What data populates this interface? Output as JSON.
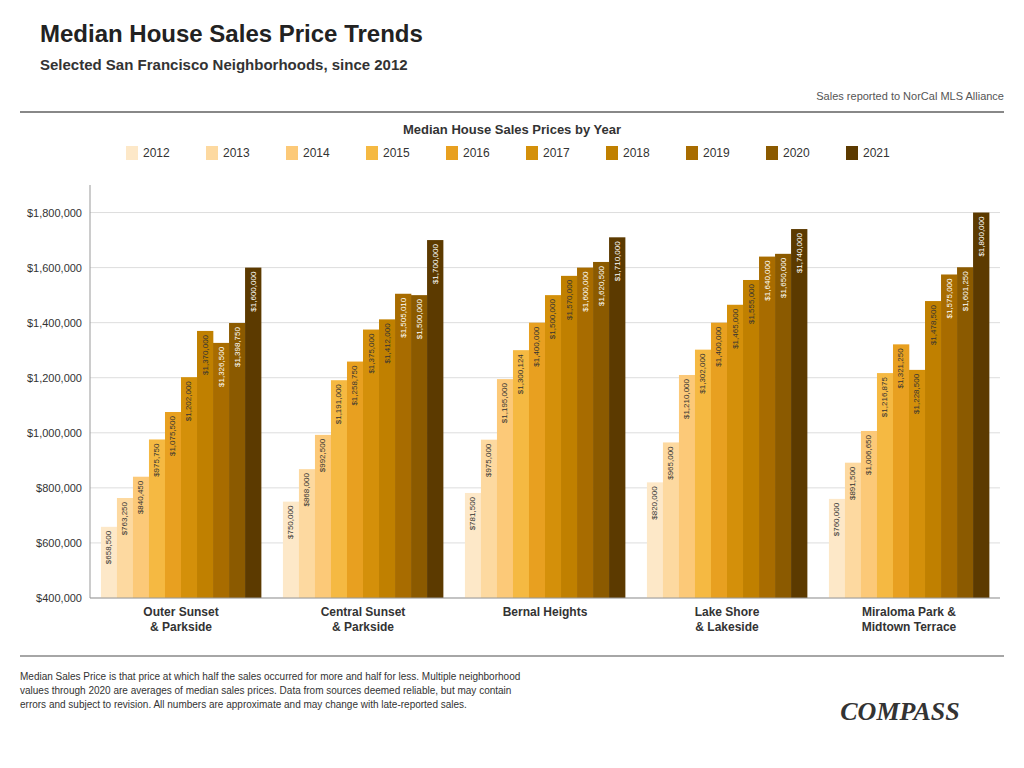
{
  "chart_data": {
    "type": "bar",
    "title": "Median House Sales Price Trends",
    "subtitle": "Selected San Francisco Neighborhoods, since 2012",
    "legend_title": "Median House Sales Prices by Year",
    "annotations": [
      "Sales reported to NorCal MLS Alliance",
      "Median Sales Price is that price at which half the sales occurred for more and half for less. Multiple neighborhood\nvalues through 2020 are averages of median sales prices. Data from sources deemed reliable, but may contain\nerrors and subject to revision.  All numbers are approximate and may change with late-reported sales.",
      "COMPASS"
    ],
    "categories": [
      "Outer Sunset\n& Parkside",
      "Central Sunset\n& Parkside",
      "Bernal Heights",
      "Lake Shore\n& Lakeside",
      "Miraloma Park &\nMidtown Terrace"
    ],
    "series": [
      {
        "name": "2012",
        "color": "#fde8c8",
        "values": [
          658500,
          750000,
          781500,
          820000,
          760000
        ],
        "value_labels": [
          "$658,500",
          "$750,000",
          "$781,500",
          "$820,000",
          "$760,000"
        ]
      },
      {
        "name": "2013",
        "color": "#fdd9a0",
        "values": [
          763250,
          868000,
          975000,
          965000,
          891500
        ],
        "value_labels": [
          "$763,250",
          "$868,000",
          "$975,000",
          "$965,000",
          "$891,500"
        ]
      },
      {
        "name": "2014",
        "color": "#fcc978",
        "values": [
          840450,
          992500,
          1195000,
          1210000,
          1006650
        ],
        "value_labels": [
          "$840,450",
          "$992,500",
          "$1,195,000",
          "$1,210,000",
          "$1,006,650"
        ]
      },
      {
        "name": "2015",
        "color": "#f5b942",
        "values": [
          975750,
          1191000,
          1300124,
          1302000,
          1216875
        ],
        "value_labels": [
          "$975,750",
          "$1,191,000",
          "$1,300,124",
          "$1,302,000",
          "$1,216,875"
        ]
      },
      {
        "name": "2016",
        "color": "#e8a020",
        "values": [
          1075500,
          1258750,
          1400000,
          1400000,
          1321250
        ],
        "value_labels": [
          "$1,075,500",
          "$1,258,750",
          "$1,400,000",
          "$1,400,000",
          "$1,321,250"
        ]
      },
      {
        "name": "2017",
        "color": "#d4900a",
        "values": [
          1202000,
          1375000,
          1500000,
          1465000,
          1228500
        ],
        "value_labels": [
          "$1,202,000",
          "$1,375,000",
          "$1,500,000",
          "$1,465,000",
          "$1,228,500"
        ]
      },
      {
        "name": "2018",
        "color": "#c08000",
        "values": [
          1370000,
          1412000,
          1570000,
          1555000,
          1478500
        ],
        "value_labels": [
          "$1,370,000",
          "$1,412,000",
          "$1,570,000",
          "$1,555,000",
          "$1,478,500"
        ]
      },
      {
        "name": "2019",
        "color": "#a86c00",
        "values": [
          1326500,
          1505010,
          1600000,
          1640000,
          1575000
        ],
        "value_labels": [
          "$1,326,500",
          "$1,505,010",
          "$1,600,000",
          "$1,640,000",
          "$1,575,000"
        ]
      },
      {
        "name": "2020",
        "color": "#8b5a00",
        "values": [
          1398750,
          1500000,
          1620500,
          1650000,
          1601250
        ],
        "value_labels": [
          "$1,398,750",
          "$1,500,000",
          "$1,620,500",
          "$1,650,000",
          "$1,601,250"
        ]
      },
      {
        "name": "2021",
        "color": "#5c3a00",
        "values": [
          1600000,
          1700000,
          1710000,
          1740000,
          1800000
        ],
        "value_labels": [
          "$1,600,000",
          "$1,700,000",
          "$1,710,000",
          "$1,740,000",
          "$1,800,000"
        ]
      }
    ],
    "ylim": [
      400000,
      1900000
    ],
    "yticks": [
      {
        "value": 400000,
        "label": "$400,000"
      },
      {
        "value": 600000,
        "label": "$600,000"
      },
      {
        "value": 800000,
        "label": "$800,000"
      },
      {
        "value": 1000000,
        "label": "$1,000,000"
      },
      {
        "value": 1200000,
        "label": "$1,200,000"
      },
      {
        "value": 1400000,
        "label": "$1,400,000"
      },
      {
        "value": 1600000,
        "label": "$1,600,000"
      },
      {
        "value": 1800000,
        "label": "$1,800,000"
      }
    ],
    "grid": true,
    "legend": "top",
    "data_labels": true
  }
}
